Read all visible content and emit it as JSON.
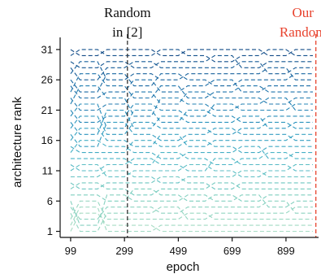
{
  "chart_data": {
    "type": "line",
    "xlabel": "epoch",
    "ylabel": "architecture rank",
    "x": [
      99,
      199,
      299,
      399,
      499,
      599,
      699,
      799,
      899,
      999
    ],
    "xticks": [
      99,
      299,
      499,
      699,
      899
    ],
    "yticks": [
      1,
      6,
      11,
      16,
      21,
      26,
      31
    ],
    "xlim": [
      60,
      1020
    ],
    "ylim": [
      33,
      0
    ],
    "grid": false,
    "line_style": "dashed",
    "colormap": [
      "#a8dcc4",
      "#7fcfbf",
      "#4bb5c6",
      "#2a93be",
      "#1b6ea8",
      "#114a86"
    ],
    "annotations": [
      {
        "text_lines": [
          "Random",
          "in [2]"
        ],
        "x": 310,
        "color": "#111111",
        "line_color": "#333333"
      },
      {
        "text_lines": [
          "Our",
          "Random"
        ],
        "x": 1010,
        "color": "#e8432e",
        "line_color": "#e8432e"
      }
    ],
    "series": [
      {
        "values": [
          1,
          4,
          2,
          2,
          1,
          1,
          1,
          1,
          1,
          1
        ]
      },
      {
        "values": [
          2,
          5,
          1,
          1,
          2,
          2,
          2,
          2,
          2,
          2
        ]
      },
      {
        "values": [
          3,
          6,
          3,
          3,
          3,
          4,
          3,
          3,
          3,
          3
        ]
      },
      {
        "values": [
          4,
          1,
          4,
          4,
          5,
          3,
          4,
          4,
          4,
          5
        ]
      },
      {
        "values": [
          5,
          3,
          5,
          5,
          4,
          5,
          5,
          5,
          6,
          4
        ]
      },
      {
        "values": [
          6,
          2,
          7,
          6,
          6,
          7,
          6,
          7,
          5,
          6
        ]
      },
      {
        "values": [
          7,
          7,
          6,
          8,
          7,
          6,
          7,
          6,
          7,
          7
        ]
      },
      {
        "values": [
          8,
          9,
          8,
          7,
          8,
          8,
          9,
          8,
          8,
          8
        ]
      },
      {
        "values": [
          9,
          8,
          9,
          9,
          10,
          9,
          8,
          9,
          9,
          9
        ]
      },
      {
        "values": [
          10,
          10,
          11,
          10,
          9,
          10,
          10,
          11,
          10,
          10
        ]
      },
      {
        "values": [
          11,
          12,
          10,
          11,
          11,
          12,
          11,
          10,
          11,
          12
        ]
      },
      {
        "values": [
          12,
          11,
          12,
          13,
          12,
          11,
          13,
          12,
          12,
          11
        ]
      },
      {
        "values": [
          13,
          13,
          13,
          12,
          14,
          13,
          12,
          13,
          14,
          13
        ]
      },
      {
        "values": [
          14,
          16,
          15,
          14,
          13,
          14,
          14,
          15,
          13,
          14
        ]
      },
      {
        "values": [
          15,
          14,
          14,
          16,
          15,
          16,
          15,
          14,
          15,
          15
        ]
      },
      {
        "values": [
          16,
          18,
          16,
          15,
          17,
          15,
          16,
          16,
          16,
          17
        ]
      },
      {
        "values": [
          17,
          15,
          19,
          17,
          16,
          17,
          18,
          17,
          17,
          16
        ]
      },
      {
        "values": [
          18,
          20,
          17,
          19,
          18,
          18,
          17,
          18,
          19,
          18
        ]
      },
      {
        "values": [
          19,
          17,
          21,
          18,
          20,
          19,
          19,
          20,
          18,
          19
        ]
      },
      {
        "values": [
          20,
          22,
          18,
          21,
          19,
          21,
          20,
          19,
          20,
          20
        ]
      },
      {
        "values": [
          21,
          19,
          20,
          22,
          21,
          20,
          22,
          21,
          21,
          22
        ]
      },
      {
        "values": [
          22,
          25,
          23,
          20,
          23,
          22,
          21,
          22,
          23,
          21
        ]
      },
      {
        "values": [
          23,
          21,
          22,
          24,
          22,
          24,
          23,
          23,
          22,
          23
        ]
      },
      {
        "values": [
          24,
          27,
          25,
          23,
          25,
          23,
          24,
          25,
          24,
          24
        ]
      },
      {
        "values": [
          25,
          23,
          24,
          26,
          24,
          25,
          26,
          24,
          25,
          25
        ]
      },
      {
        "values": [
          26,
          24,
          27,
          25,
          27,
          26,
          25,
          26,
          26,
          27
        ]
      },
      {
        "values": [
          27,
          29,
          26,
          27,
          26,
          27,
          27,
          27,
          28,
          26
        ]
      },
      {
        "values": [
          28,
          26,
          28,
          29,
          28,
          28,
          28,
          29,
          27,
          28
        ]
      },
      {
        "values": [
          29,
          28,
          29,
          28,
          29,
          29,
          30,
          28,
          29,
          29
        ]
      },
      {
        "values": [
          30,
          31,
          30,
          30,
          31,
          30,
          29,
          30,
          31,
          30
        ]
      },
      {
        "values": [
          31,
          30,
          31,
          31,
          30,
          31,
          31,
          31,
          30,
          31
        ]
      }
    ]
  }
}
